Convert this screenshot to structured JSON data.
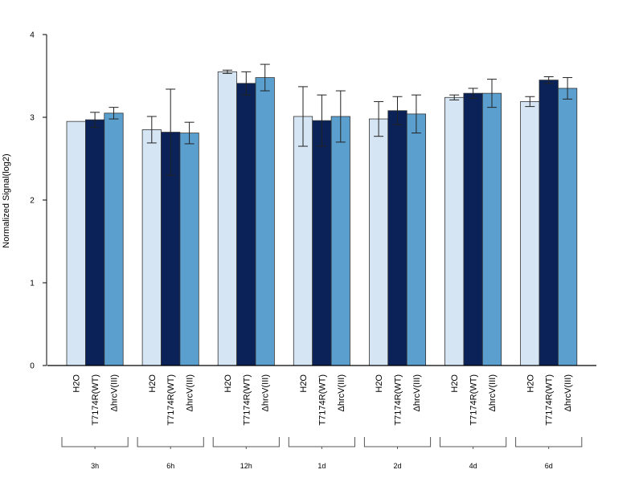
{
  "chart_data": {
    "type": "bar",
    "title": "",
    "xlabel": "",
    "ylabel": "Normalized Signal(log2)",
    "ylim": [
      0,
      4
    ],
    "yticks": [
      "0",
      "1",
      "2",
      "3",
      "4"
    ],
    "grid": false,
    "legend": "none",
    "bar_labels": [
      "H2O",
      "T7174R(WT)",
      "ΔhrcV(III)"
    ],
    "colors": [
      "#d6e5f4",
      "#0a2257",
      "#5b9fce"
    ],
    "groups": [
      {
        "label": "3h",
        "values": [
          2.95,
          2.97,
          3.05
        ],
        "errors": [
          0.0,
          0.09,
          0.07
        ]
      },
      {
        "label": "6h",
        "values": [
          2.85,
          2.82,
          2.81
        ],
        "errors": [
          0.16,
          0.52,
          0.13
        ]
      },
      {
        "label": "12h",
        "values": [
          3.55,
          3.41,
          3.48
        ],
        "errors": [
          0.02,
          0.14,
          0.16
        ]
      },
      {
        "label": "1d",
        "values": [
          3.01,
          2.96,
          3.01
        ],
        "errors": [
          0.36,
          0.31,
          0.31
        ]
      },
      {
        "label": "2d",
        "values": [
          2.98,
          3.08,
          3.04
        ],
        "errors": [
          0.21,
          0.17,
          0.23
        ]
      },
      {
        "label": "4d",
        "values": [
          3.24,
          3.29,
          3.29
        ],
        "errors": [
          0.03,
          0.06,
          0.17
        ]
      },
      {
        "label": "6d",
        "values": [
          3.19,
          3.45,
          3.35
        ],
        "errors": [
          0.06,
          0.04,
          0.13
        ]
      }
    ]
  }
}
